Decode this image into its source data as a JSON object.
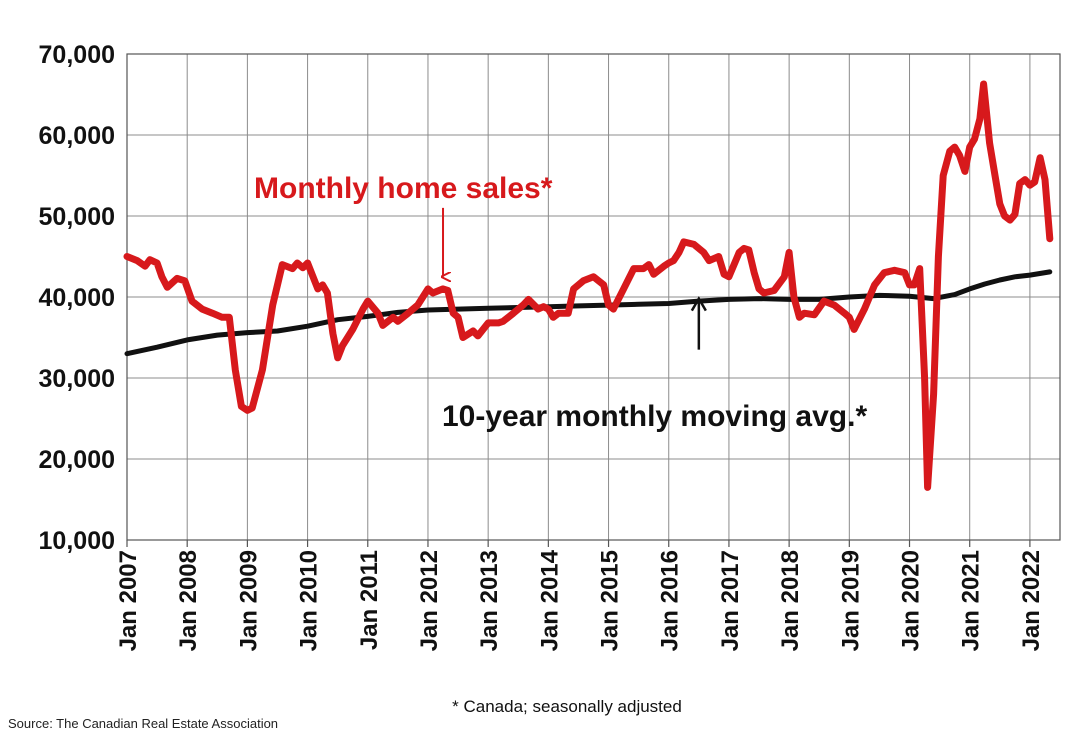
{
  "chart_data": {
    "type": "line",
    "title": "",
    "xlabel": "",
    "ylabel": "",
    "ylim": [
      10000,
      70000
    ],
    "yticks": [
      10000,
      20000,
      30000,
      40000,
      50000,
      60000,
      70000
    ],
    "ytick_labels": [
      "10,000",
      "20,000",
      "30,000",
      "40,000",
      "50,000",
      "60,000",
      "70,000"
    ],
    "xlim": [
      2007.0,
      2022.5
    ],
    "xtick_positions": [
      2007,
      2008,
      2009,
      2010,
      2011,
      2012,
      2013,
      2014,
      2015,
      2016,
      2017,
      2018,
      2019,
      2020,
      2021,
      2022
    ],
    "xtick_labels": [
      "Jan 2007",
      "Jan 2008",
      "Jan 2009",
      "Jan 2010",
      "Jan 2011",
      "Jan 2012",
      "Jan 2013",
      "Jan 2014",
      "Jan 2015",
      "Jan 2016",
      "Jan 2017",
      "Jan 2018",
      "Jan 2019",
      "Jan 2020",
      "Jan 2021",
      "Jan 2022"
    ],
    "grid": true,
    "series": [
      {
        "name": "Monthly home sales*",
        "color": "#d7191c",
        "points": [
          [
            2007.0,
            45000
          ],
          [
            2007.17,
            44500
          ],
          [
            2007.3,
            43800
          ],
          [
            2007.38,
            44600
          ],
          [
            2007.5,
            44200
          ],
          [
            2007.58,
            42500
          ],
          [
            2007.67,
            41200
          ],
          [
            2007.83,
            42300
          ],
          [
            2007.96,
            42000
          ],
          [
            2008.08,
            39500
          ],
          [
            2008.25,
            38500
          ],
          [
            2008.42,
            38000
          ],
          [
            2008.58,
            37500
          ],
          [
            2008.7,
            37500
          ],
          [
            2008.8,
            31000
          ],
          [
            2008.9,
            26500
          ],
          [
            2009.0,
            26000
          ],
          [
            2009.08,
            26300
          ],
          [
            2009.25,
            31000
          ],
          [
            2009.42,
            39000
          ],
          [
            2009.58,
            44000
          ],
          [
            2009.75,
            43500
          ],
          [
            2009.83,
            44200
          ],
          [
            2009.92,
            43600
          ],
          [
            2010.0,
            44200
          ],
          [
            2010.17,
            41000
          ],
          [
            2010.25,
            41500
          ],
          [
            2010.33,
            40500
          ],
          [
            2010.42,
            35500
          ],
          [
            2010.5,
            32500
          ],
          [
            2010.58,
            34000
          ],
          [
            2010.75,
            36000
          ],
          [
            2010.92,
            38500
          ],
          [
            2011.0,
            39500
          ],
          [
            2011.17,
            38000
          ],
          [
            2011.25,
            36500
          ],
          [
            2011.42,
            37500
          ],
          [
            2011.5,
            37000
          ],
          [
            2011.67,
            38000
          ],
          [
            2011.83,
            39000
          ],
          [
            2012.0,
            41000
          ],
          [
            2012.08,
            40500
          ],
          [
            2012.25,
            41000
          ],
          [
            2012.33,
            40800
          ],
          [
            2012.42,
            38000
          ],
          [
            2012.5,
            37500
          ],
          [
            2012.58,
            35000
          ],
          [
            2012.75,
            35800
          ],
          [
            2012.83,
            35200
          ],
          [
            2013.0,
            36800
          ],
          [
            2013.17,
            36800
          ],
          [
            2013.25,
            37000
          ],
          [
            2013.42,
            38000
          ],
          [
            2013.58,
            39000
          ],
          [
            2013.67,
            39700
          ],
          [
            2013.83,
            38500
          ],
          [
            2013.92,
            38800
          ],
          [
            2014.0,
            38500
          ],
          [
            2014.08,
            37500
          ],
          [
            2014.17,
            38000
          ],
          [
            2014.33,
            38000
          ],
          [
            2014.42,
            41000
          ],
          [
            2014.58,
            42000
          ],
          [
            2014.75,
            42500
          ],
          [
            2014.92,
            41500
          ],
          [
            2015.0,
            39000
          ],
          [
            2015.08,
            38500
          ],
          [
            2015.25,
            41000
          ],
          [
            2015.42,
            43500
          ],
          [
            2015.58,
            43500
          ],
          [
            2015.67,
            44000
          ],
          [
            2015.75,
            42800
          ],
          [
            2015.92,
            43800
          ],
          [
            2016.0,
            44200
          ],
          [
            2016.08,
            44500
          ],
          [
            2016.17,
            45500
          ],
          [
            2016.25,
            46800
          ],
          [
            2016.42,
            46500
          ],
          [
            2016.58,
            45500
          ],
          [
            2016.67,
            44500
          ],
          [
            2016.83,
            45000
          ],
          [
            2016.92,
            42800
          ],
          [
            2017.0,
            42500
          ],
          [
            2017.17,
            45500
          ],
          [
            2017.25,
            46000
          ],
          [
            2017.33,
            45800
          ],
          [
            2017.42,
            43000
          ],
          [
            2017.5,
            41000
          ],
          [
            2017.58,
            40500
          ],
          [
            2017.75,
            40800
          ],
          [
            2017.92,
            42500
          ],
          [
            2018.0,
            45500
          ],
          [
            2018.08,
            40000
          ],
          [
            2018.17,
            37500
          ],
          [
            2018.25,
            38000
          ],
          [
            2018.42,
            37800
          ],
          [
            2018.58,
            39500
          ],
          [
            2018.75,
            39000
          ],
          [
            2018.92,
            38000
          ],
          [
            2019.0,
            37500
          ],
          [
            2019.08,
            36000
          ],
          [
            2019.25,
            38500
          ],
          [
            2019.42,
            41500
          ],
          [
            2019.58,
            43000
          ],
          [
            2019.75,
            43300
          ],
          [
            2019.92,
            43000
          ],
          [
            2020.0,
            41500
          ],
          [
            2020.08,
            41500
          ],
          [
            2020.17,
            43500
          ],
          [
            2020.25,
            30000
          ],
          [
            2020.3,
            16500
          ],
          [
            2020.4,
            28000
          ],
          [
            2020.48,
            45000
          ],
          [
            2020.56,
            55000
          ],
          [
            2020.67,
            58000
          ],
          [
            2020.75,
            58500
          ],
          [
            2020.83,
            57500
          ],
          [
            2020.92,
            55500
          ],
          [
            2021.0,
            58500
          ],
          [
            2021.08,
            59500
          ],
          [
            2021.17,
            62000
          ],
          [
            2021.23,
            66300
          ],
          [
            2021.33,
            59000
          ],
          [
            2021.42,
            55000
          ],
          [
            2021.5,
            51500
          ],
          [
            2021.58,
            50000
          ],
          [
            2021.67,
            49500
          ],
          [
            2021.75,
            50200
          ],
          [
            2021.83,
            54000
          ],
          [
            2021.92,
            54500
          ],
          [
            2022.0,
            53800
          ],
          [
            2022.08,
            54200
          ],
          [
            2022.17,
            57200
          ],
          [
            2022.25,
            54500
          ],
          [
            2022.33,
            47200
          ]
        ]
      },
      {
        "name": "10-year monthly moving avg.*",
        "color": "#111111",
        "points": [
          [
            2007.0,
            33000
          ],
          [
            2007.5,
            33800
          ],
          [
            2008.0,
            34700
          ],
          [
            2008.5,
            35300
          ],
          [
            2009.0,
            35600
          ],
          [
            2009.5,
            35800
          ],
          [
            2010.0,
            36400
          ],
          [
            2010.5,
            37200
          ],
          [
            2011.0,
            37600
          ],
          [
            2011.5,
            38100
          ],
          [
            2012.0,
            38400
          ],
          [
            2012.5,
            38500
          ],
          [
            2013.0,
            38600
          ],
          [
            2013.5,
            38700
          ],
          [
            2014.0,
            38800
          ],
          [
            2014.5,
            38900
          ],
          [
            2015.0,
            39000
          ],
          [
            2015.5,
            39100
          ],
          [
            2016.0,
            39200
          ],
          [
            2016.5,
            39500
          ],
          [
            2017.0,
            39700
          ],
          [
            2017.5,
            39800
          ],
          [
            2018.0,
            39700
          ],
          [
            2018.5,
            39700
          ],
          [
            2019.0,
            40000
          ],
          [
            2019.5,
            40200
          ],
          [
            2020.0,
            40100
          ],
          [
            2020.4,
            39800
          ],
          [
            2020.75,
            40300
          ],
          [
            2021.0,
            41000
          ],
          [
            2021.25,
            41600
          ],
          [
            2021.5,
            42100
          ],
          [
            2021.75,
            42500
          ],
          [
            2022.0,
            42700
          ],
          [
            2022.33,
            43100
          ]
        ]
      }
    ],
    "annotations": [
      {
        "text": "Monthly home sales*",
        "color": "#d7191c",
        "arrow_from": [
          2012.25,
          51000
        ],
        "arrow_to": [
          2012.25,
          42500
        ]
      },
      {
        "text": "10-year monthly moving avg.*",
        "color": "#111111",
        "arrow_from": [
          2016.5,
          33500
        ],
        "arrow_to": [
          2016.5,
          39800
        ]
      }
    ]
  },
  "footnote": "* Canada; seasonally adjusted",
  "source": "Source: The Canadian Real Estate Association"
}
